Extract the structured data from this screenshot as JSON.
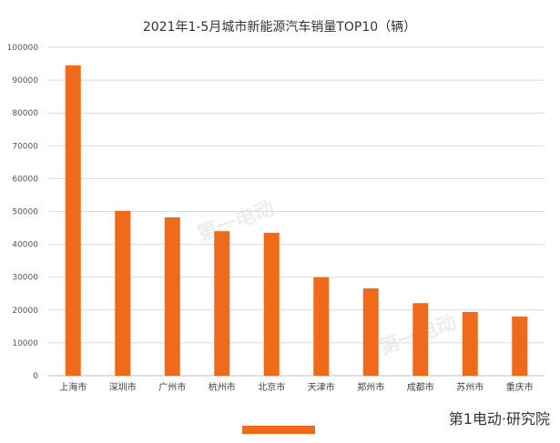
{
  "chart_data": {
    "type": "bar",
    "title": "2021年1-5月城市新能源汽车销量TOP10（辆）",
    "xlabel": "",
    "ylabel": "",
    "ylim": [
      0,
      100000
    ],
    "yticks": [
      0,
      10000,
      20000,
      30000,
      40000,
      50000,
      60000,
      70000,
      80000,
      90000,
      100000
    ],
    "categories": [
      "上海市",
      "深圳市",
      "广州市",
      "杭州市",
      "北京市",
      "天津市",
      "郑州市",
      "成都市",
      "苏州市",
      "重庆市"
    ],
    "values": [
      94500,
      50200,
      48200,
      44000,
      43500,
      30000,
      26600,
      22100,
      19400,
      18000
    ],
    "colors": {
      "bar": "#F06A1C",
      "grid": "#D9D9D9"
    },
    "grid": true,
    "legend": "bottom-center"
  },
  "branding": {
    "watermark_text": "第一电动",
    "logo_text": "第1电动·研究院"
  }
}
